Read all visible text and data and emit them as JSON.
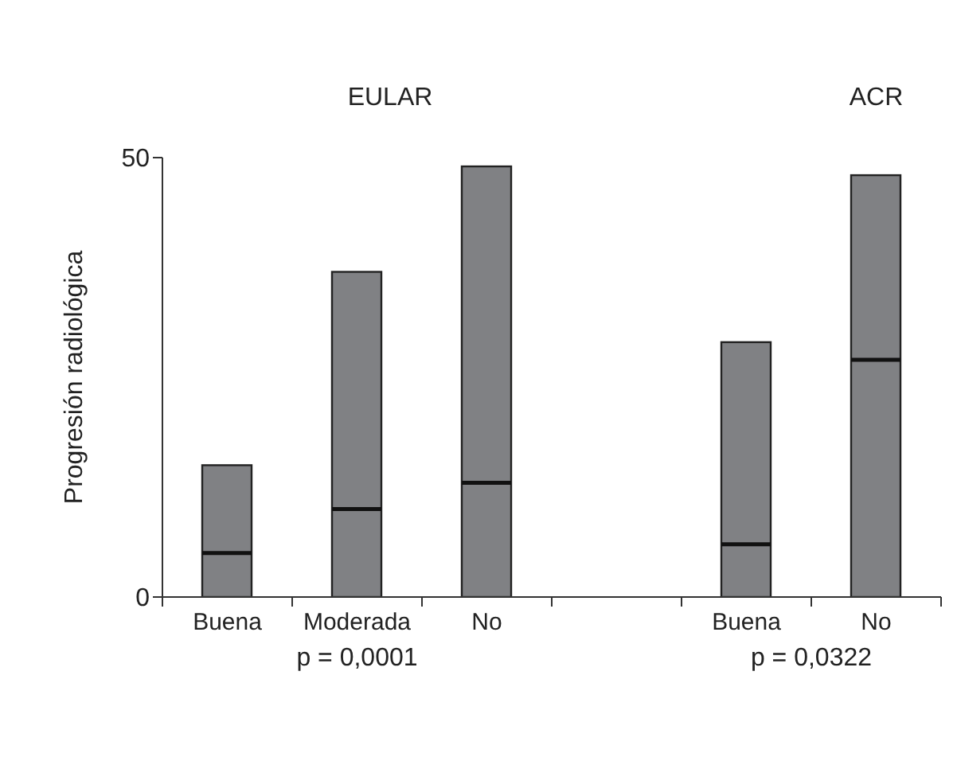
{
  "chart_data": {
    "type": "box",
    "ylabel": "Progresión radiológica",
    "categories": [
      "Buena",
      "Moderada",
      "No",
      null,
      "Buena",
      "No"
    ],
    "boxes": [
      {
        "low": 0,
        "q1": 0,
        "median": 5,
        "q3": 15,
        "high": 15
      },
      {
        "low": 0,
        "q1": 0,
        "median": 10,
        "q3": 37,
        "high": 37
      },
      {
        "low": 0,
        "q1": 0,
        "median": 13,
        "q3": 49,
        "high": 49
      },
      null,
      {
        "low": 0,
        "q1": 0,
        "median": 6,
        "q3": 29,
        "high": 29
      },
      {
        "low": 0,
        "q1": 0,
        "median": 27,
        "q3": 48,
        "high": 48
      }
    ],
    "color": "#808184",
    "ylim": [
      0,
      50
    ],
    "yticks": [
      0,
      50
    ],
    "annotations": [
      "EULAR",
      "ACR",
      "p = 0,0001",
      "p = 0,0322"
    ]
  }
}
